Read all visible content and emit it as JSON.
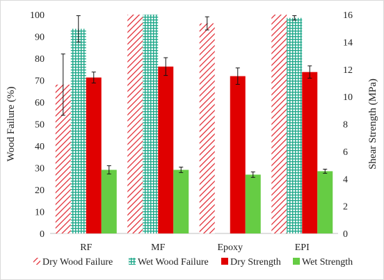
{
  "chart_data": {
    "type": "bar",
    "categories": [
      "RF",
      "MF",
      "Epoxy",
      "EPI"
    ],
    "y_left": {
      "label": "Wood Failure (%)",
      "range": [
        0,
        100
      ],
      "ticks": [
        "0",
        "10",
        "20",
        "30",
        "40",
        "50",
        "60",
        "70",
        "80",
        "90",
        "100"
      ]
    },
    "y_right": {
      "label": "Shear Strength (MPa)",
      "range": [
        0,
        16
      ],
      "ticks": [
        "0",
        "2",
        "4",
        "6",
        "8",
        "10",
        "12",
        "14",
        "16"
      ]
    },
    "grid": false,
    "legend_position": "bottom",
    "series": [
      {
        "name": "Dry Wood Failure",
        "axis": "left",
        "pattern": "diagonal-hatch",
        "color": "#e0202a",
        "values": [
          68,
          100,
          96,
          100
        ],
        "errors": [
          14,
          0,
          3,
          0
        ]
      },
      {
        "name": "Wet Wood Failure",
        "axis": "left",
        "pattern": "grid-dots",
        "color": "#1fa88a",
        "values": [
          93.5,
          100,
          0,
          98.5
        ],
        "errors": [
          6,
          0,
          0,
          1
        ]
      },
      {
        "name": "Dry Strength",
        "axis": "right",
        "pattern": "solid",
        "color": "#e00000",
        "values": [
          11.4,
          12.2,
          11.5,
          11.8
        ],
        "errors": [
          0.4,
          0.65,
          0.6,
          0.45
        ]
      },
      {
        "name": "Wet Strength",
        "axis": "right",
        "pattern": "solid",
        "color": "#66cc44",
        "values": [
          4.65,
          4.65,
          4.3,
          4.55
        ],
        "errors": [
          0.3,
          0.2,
          0.2,
          0.15
        ]
      }
    ]
  }
}
